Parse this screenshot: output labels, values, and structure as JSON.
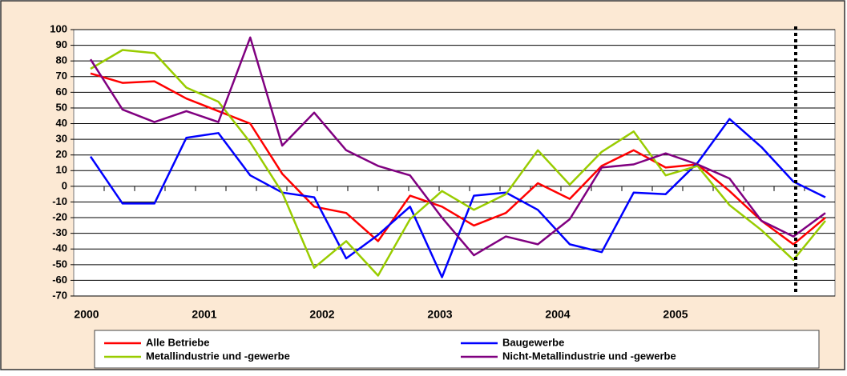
{
  "chart_data": {
    "type": "line",
    "categories": [
      "2000",
      null,
      null,
      null,
      "2001",
      null,
      null,
      null,
      "2002",
      null,
      null,
      null,
      "2003",
      null,
      null,
      null,
      "2004",
      null,
      null,
      null,
      "2005",
      null,
      null,
      null
    ],
    "series": [
      {
        "name": "Alle Betriebe",
        "color": "#ff0000",
        "values": [
          72,
          66,
          67,
          56,
          48,
          40,
          8,
          -13,
          -17,
          -35,
          -6,
          -13,
          -25,
          -17,
          2,
          -8,
          13,
          23,
          12,
          14,
          -3,
          -22,
          -37,
          -20
        ]
      },
      {
        "name": "Baugewerbe",
        "color": "#0000ff",
        "values": [
          19,
          -11,
          -11,
          31,
          34,
          7,
          -4,
          -7,
          -46,
          -31,
          -13,
          -58,
          -6,
          -4,
          -15,
          -37,
          -42,
          -4,
          -5,
          15,
          43,
          25,
          3,
          -7
        ]
      },
      {
        "name": "Metallindustrie und -gewerbe",
        "color": "#99cc00",
        "values": [
          75,
          87,
          85,
          63,
          54,
          28,
          -4,
          -52,
          -35,
          -57,
          -21,
          -3,
          -15,
          -5,
          23,
          1,
          22,
          35,
          7,
          13,
          -12,
          -28,
          -47,
          -22
        ]
      },
      {
        "name": "Nicht-Metallindustrie und -gewerbe",
        "color": "#800080",
        "values": [
          81,
          49,
          41,
          48,
          41,
          95,
          26,
          47,
          23,
          13,
          7,
          -20,
          -44,
          -32,
          -37,
          -21,
          12,
          14,
          21,
          14,
          5,
          -22,
          -32,
          -17
        ]
      }
    ],
    "ylim": [
      -70,
      100
    ],
    "yticks": [
      -70,
      -60,
      -50,
      -40,
      -30,
      -20,
      -10,
      0,
      10,
      20,
      30,
      40,
      50,
      60,
      70,
      80,
      90,
      100
    ],
    "grid": true
  }
}
